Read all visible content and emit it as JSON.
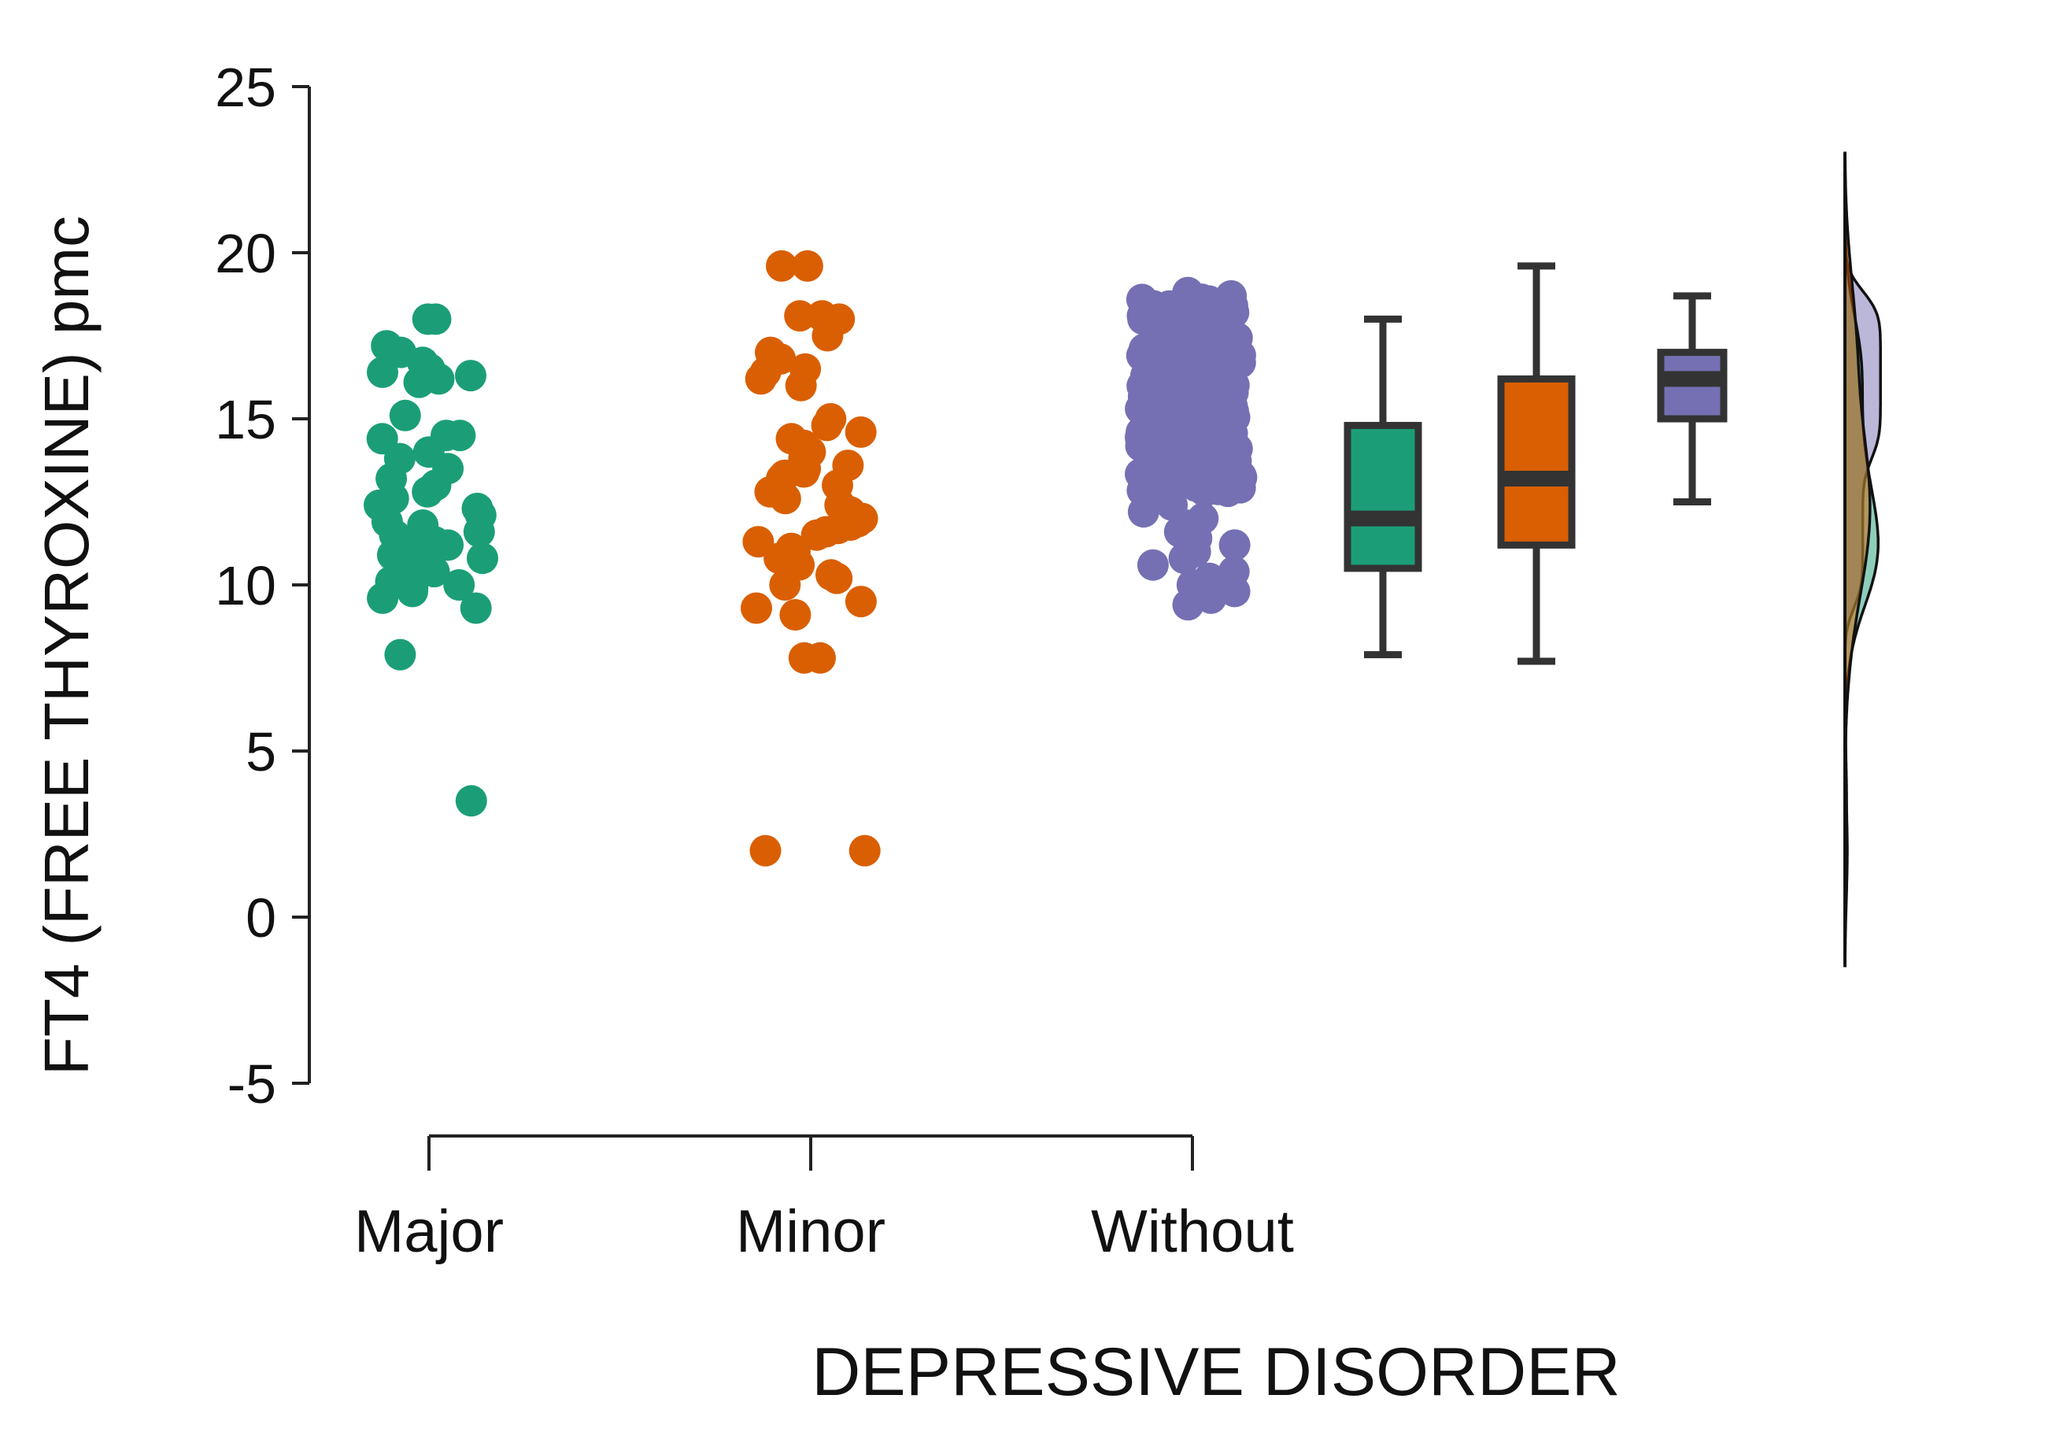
{
  "chart_data": {
    "type": "raincloud",
    "title": "",
    "xlabel": "DEPRESSIVE DISORDER",
    "ylabel": "FT4 (FREE THYROXINE) pmc",
    "ylim": [
      -5,
      25
    ],
    "yticks": [
      25,
      20,
      15,
      10,
      5,
      0,
      -5
    ],
    "categories": [
      "Major",
      "Minor",
      "Without"
    ],
    "series": [
      {
        "name": "Major",
        "color": "#1b9e77",
        "points": [
          18.0,
          18.0,
          17.2,
          17.0,
          16.7,
          16.5,
          16.4,
          16.3,
          16.2,
          16.1,
          15.1,
          14.5,
          14.5,
          14.4,
          14.0,
          13.8,
          13.5,
          13.2,
          13.0,
          12.8,
          12.6,
          12.4,
          12.3,
          12.1,
          11.9,
          11.8,
          11.6,
          11.5,
          11.4,
          11.3,
          11.2,
          11.0,
          10.9,
          10.8,
          10.6,
          10.5,
          10.4,
          10.3,
          10.1,
          10.0,
          9.9,
          9.8,
          9.6,
          9.3,
          7.9,
          3.5
        ],
        "box": {
          "min": 7.9,
          "q1": 10.5,
          "median": 12.0,
          "q3": 14.8,
          "max": 18.0
        }
      },
      {
        "name": "Minor",
        "color": "#d95f02",
        "points": [
          19.6,
          19.6,
          18.1,
          18.1,
          18.0,
          17.5,
          17.0,
          16.8,
          16.5,
          16.4,
          16.2,
          16.0,
          15.0,
          14.8,
          14.6,
          14.4,
          14.2,
          14.0,
          13.8,
          13.6,
          13.5,
          13.4,
          13.3,
          13.2,
          13.0,
          12.8,
          12.6,
          12.4,
          12.2,
          12.0,
          11.9,
          11.8,
          11.7,
          11.6,
          11.5,
          11.3,
          11.1,
          11.0,
          10.8,
          10.6,
          10.3,
          10.2,
          10.0,
          9.5,
          9.3,
          9.1,
          7.8,
          7.8,
          2.0,
          2.0
        ],
        "box": {
          "min": 7.7,
          "q1": 11.2,
          "median": 13.2,
          "q3": 16.2,
          "max": 19.6
        }
      },
      {
        "name": "Without",
        "color": "#7570b3",
        "points": [
          18.8,
          18.7,
          18.6,
          18.5,
          18.4,
          18.3,
          18.2,
          18.1,
          18.0,
          17.9,
          17.8,
          17.7,
          17.6,
          17.5,
          17.4,
          17.3,
          17.2,
          17.1,
          17.0,
          16.9,
          16.8,
          16.7,
          16.6,
          16.5,
          16.4,
          16.3,
          16.2,
          16.1,
          16.0,
          15.9,
          15.8,
          15.7,
          15.6,
          15.5,
          15.4,
          15.3,
          15.2,
          15.1,
          15.0,
          14.9,
          14.8,
          14.7,
          14.6,
          14.5,
          14.4,
          14.3,
          14.2,
          14.1,
          14.0,
          13.9,
          13.8,
          13.6,
          13.4,
          13.2,
          13.0,
          12.8,
          12.6,
          12.4,
          12.2,
          12.0,
          11.8,
          11.6,
          11.4,
          11.2,
          11.0,
          10.8,
          10.6,
          10.4,
          10.2,
          10.0,
          9.8,
          9.6,
          9.4
        ],
        "box": {
          "min": 12.5,
          "q1": 15.0,
          "median": 16.2,
          "q3": 17.0,
          "max": 18.7
        }
      }
    ],
    "density_order": [
      "Without",
      "Major",
      "Minor"
    ]
  }
}
